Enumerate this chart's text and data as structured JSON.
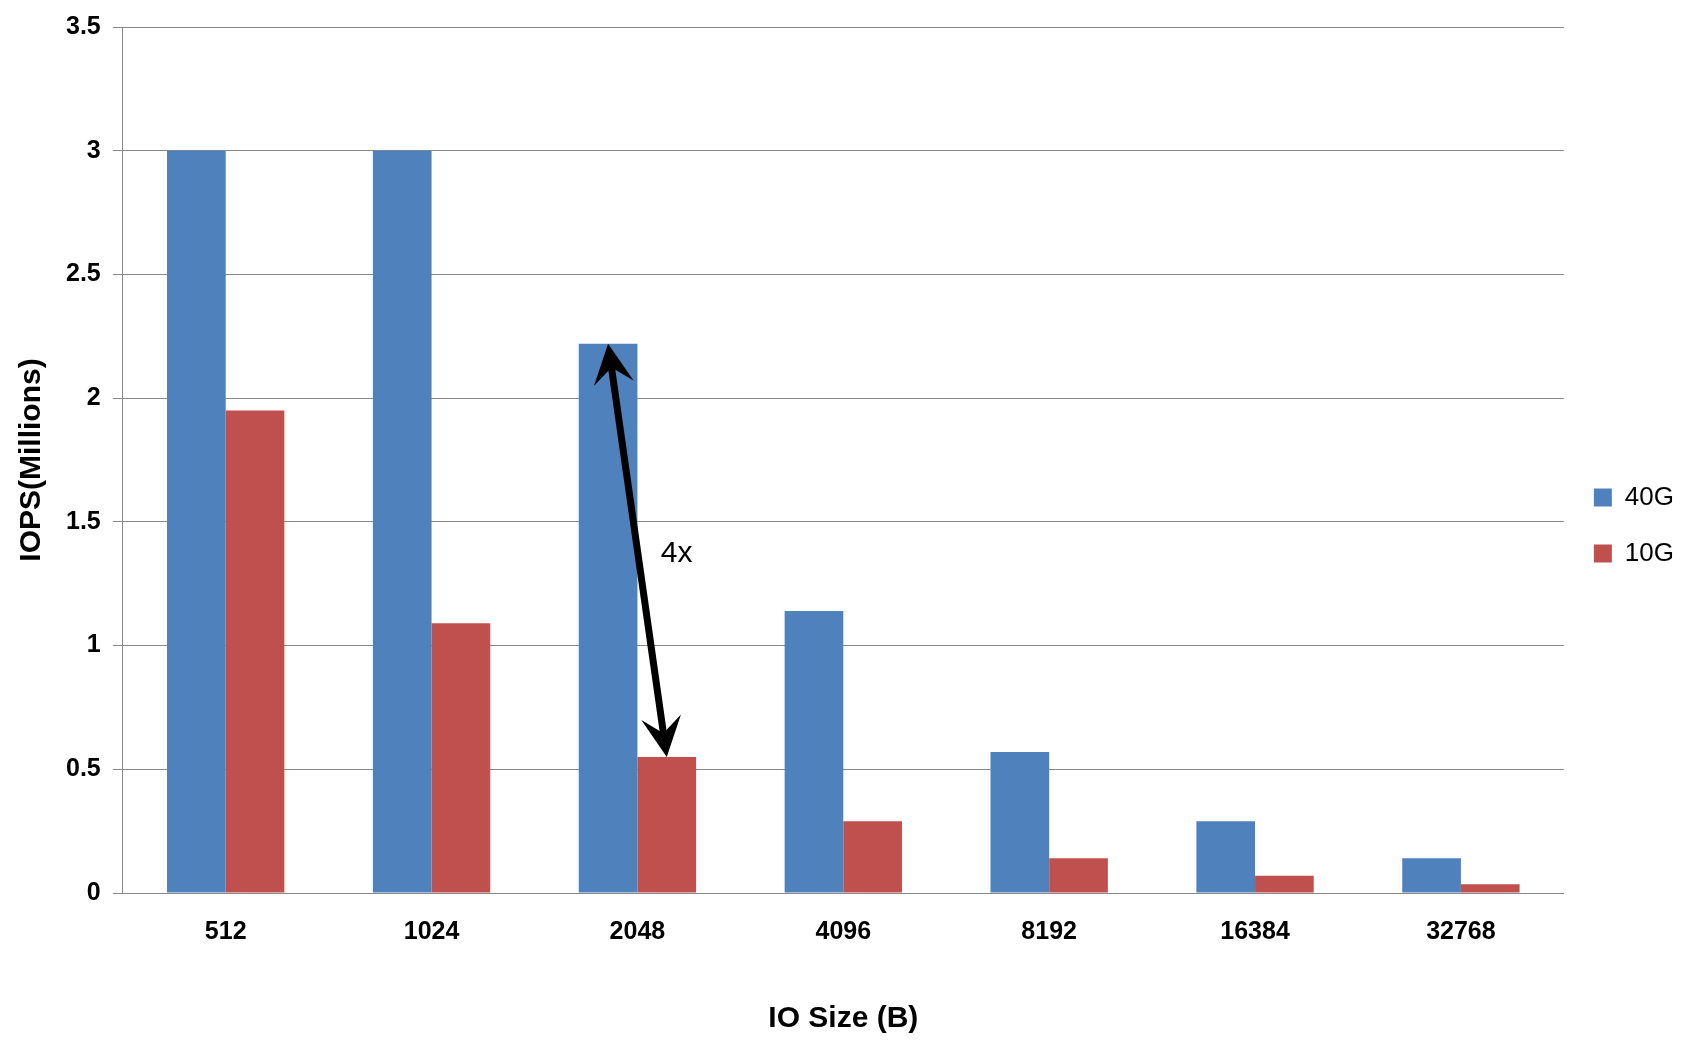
{
  "chart_data": {
    "type": "bar",
    "xlabel": "IO Size (B)",
    "ylabel": "IOPS(Millions)",
    "categories": [
      "512",
      "1024",
      "2048",
      "4096",
      "8192",
      "16384",
      "32768"
    ],
    "series": [
      {
        "name": "40G",
        "color": "#4f81bd",
        "values": [
          3.0,
          3.0,
          2.22,
          1.14,
          0.57,
          0.29,
          0.14
        ]
      },
      {
        "name": "10G",
        "color": "#c0504d",
        "values": [
          1.95,
          1.09,
          0.55,
          0.29,
          0.14,
          0.07,
          0.035
        ]
      }
    ],
    "ylim": [
      0,
      3.5
    ],
    "yticks": [
      0,
      0.5,
      1,
      1.5,
      2,
      2.5,
      3,
      3.5
    ],
    "grid": "y",
    "legend": "right",
    "annotations": [
      {
        "text": "4x",
        "x": "2048",
        "y": 1.37
      }
    ]
  }
}
